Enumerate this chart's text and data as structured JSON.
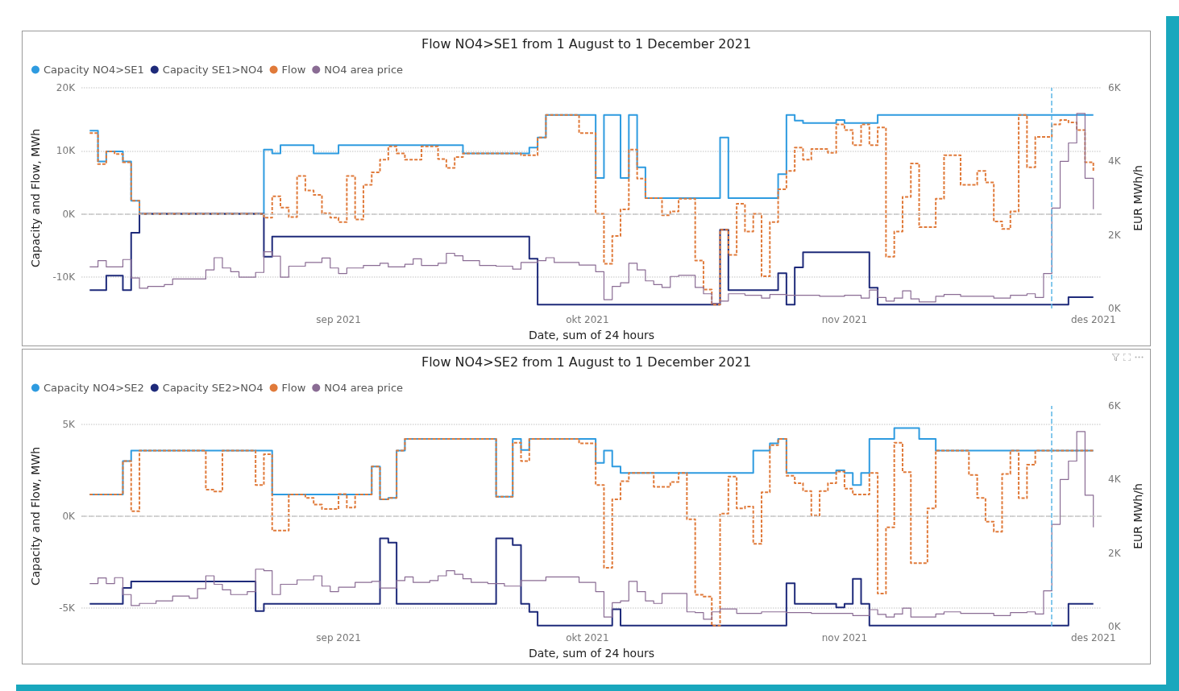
{
  "chart_data": [
    {
      "type": "step",
      "title": "Flow NO4>SE1 from 1 August to 1 December 2021",
      "xlabel": "Date, sum of 24 hours",
      "ylabel": "Capacity and Flow, MWh",
      "y2label": "EUR MWh/h",
      "legend": "top left",
      "grid": "y",
      "xlim": [
        "2021-08-01",
        "2021-12-02"
      ],
      "xticks": [
        {
          "value": "2021-09-01",
          "label": "sep 2021"
        },
        {
          "value": "2021-10-01",
          "label": "okt 2021"
        },
        {
          "value": "2021-11-01",
          "label": "nov 2021"
        },
        {
          "value": "2021-12-01",
          "label": "des 2021"
        }
      ],
      "ylim": [
        -15000,
        20000
      ],
      "yticks": [
        {
          "value": -10000,
          "label": "-10K"
        },
        {
          "value": 0,
          "label": "0K"
        },
        {
          "value": 10000,
          "label": "10K"
        },
        {
          "value": 20000,
          "label": "20K"
        }
      ],
      "y2lim": [
        0,
        6000
      ],
      "y2ticks": [
        {
          "value": 0,
          "label": "0K"
        },
        {
          "value": 2000,
          "label": "2K"
        },
        {
          "value": 4000,
          "label": "4K"
        },
        {
          "value": 6000,
          "label": "6K"
        }
      ],
      "ref_lines": [
        {
          "axis": "y",
          "value": 0,
          "color": "#c8c8c8",
          "line_style": "dashed"
        },
        {
          "axis": "x",
          "value": "2021-11-26",
          "color": "#5cb6e6",
          "line_style": "dashed"
        }
      ],
      "series": [
        {
          "name": "Capacity NO4>SE1",
          "color": "#2e9be0",
          "line_style": "solid",
          "x": [
            "2021-08-02",
            "2021-08-03",
            "2021-08-04",
            "2021-08-06",
            "2021-08-07",
            "2021-08-08",
            "2021-08-23",
            "2021-08-24",
            "2021-08-25",
            "2021-08-29",
            "2021-09-01",
            "2021-09-16",
            "2021-09-24",
            "2021-09-25",
            "2021-09-26",
            "2021-10-02",
            "2021-10-03",
            "2021-10-05",
            "2021-10-06",
            "2021-10-07",
            "2021-10-08",
            "2021-10-17",
            "2021-10-18",
            "2021-10-24",
            "2021-10-25",
            "2021-10-26",
            "2021-10-27",
            "2021-10-31",
            "2021-11-01",
            "2021-11-05",
            "2021-12-01"
          ],
          "values": [
            13200,
            8300,
            9900,
            8300,
            2100,
            0,
            10200,
            9600,
            10900,
            9600,
            10900,
            9600,
            10500,
            12100,
            15700,
            5700,
            15700,
            5700,
            15700,
            7400,
            2500,
            12100,
            2500,
            6300,
            15700,
            14800,
            14400,
            14900,
            14400,
            15700,
            15700
          ]
        },
        {
          "name": "Capacity SE1>NO4",
          "color": "#1e2a7a",
          "line_style": "solid",
          "x": [
            "2021-08-02",
            "2021-08-04",
            "2021-08-06",
            "2021-08-07",
            "2021-08-08",
            "2021-08-23",
            "2021-08-24",
            "2021-09-24",
            "2021-09-25",
            "2021-10-17",
            "2021-10-18",
            "2021-10-24",
            "2021-10-25",
            "2021-10-26",
            "2021-10-27",
            "2021-11-04",
            "2021-11-05",
            "2021-11-28",
            "2021-12-01"
          ],
          "values": [
            -12100,
            -9800,
            -12100,
            -3000,
            0,
            -6800,
            -3600,
            -7100,
            -14400,
            -2500,
            -12100,
            -9400,
            -14400,
            -8500,
            -6100,
            -11700,
            -14400,
            -13200,
            -13200
          ]
        },
        {
          "name": "Flow",
          "color": "#e07a3a",
          "line_style": "dashed",
          "x": [
            "2021-08-02",
            "2021-08-03",
            "2021-08-04",
            "2021-08-05",
            "2021-08-06",
            "2021-08-07",
            "2021-08-08",
            "2021-08-23",
            "2021-08-24",
            "2021-08-25",
            "2021-08-26",
            "2021-08-27",
            "2021-08-28",
            "2021-08-29",
            "2021-08-30",
            "2021-08-31",
            "2021-09-01",
            "2021-09-02",
            "2021-09-03",
            "2021-09-04",
            "2021-09-05",
            "2021-09-06",
            "2021-09-07",
            "2021-09-08",
            "2021-09-09",
            "2021-09-11",
            "2021-09-13",
            "2021-09-14",
            "2021-09-15",
            "2021-09-16",
            "2021-09-23",
            "2021-09-25",
            "2021-09-26",
            "2021-09-30",
            "2021-10-02",
            "2021-10-03",
            "2021-10-04",
            "2021-10-05",
            "2021-10-06",
            "2021-10-07",
            "2021-10-08",
            "2021-10-10",
            "2021-10-11",
            "2021-10-12",
            "2021-10-14",
            "2021-10-15",
            "2021-10-16",
            "2021-10-17",
            "2021-10-18",
            "2021-10-19",
            "2021-10-20",
            "2021-10-21",
            "2021-10-22",
            "2021-10-23",
            "2021-10-24",
            "2021-10-25",
            "2021-10-26",
            "2021-10-27",
            "2021-10-28",
            "2021-10-30",
            "2021-10-31",
            "2021-11-01",
            "2021-11-02",
            "2021-11-03",
            "2021-11-04",
            "2021-11-05",
            "2021-11-06",
            "2021-11-07",
            "2021-11-08",
            "2021-11-09",
            "2021-11-10",
            "2021-11-12",
            "2021-11-13",
            "2021-11-15",
            "2021-11-17",
            "2021-11-18",
            "2021-11-19",
            "2021-11-20",
            "2021-11-21",
            "2021-11-22",
            "2021-11-23",
            "2021-11-24",
            "2021-11-26",
            "2021-11-27",
            "2021-11-28",
            "2021-11-29",
            "2021-11-30",
            "2021-12-01"
          ],
          "values": [
            12800,
            7900,
            9900,
            9500,
            8200,
            2100,
            0,
            -600,
            2800,
            1000,
            -500,
            6000,
            3700,
            3000,
            100,
            -600,
            -1300,
            6000,
            -900,
            4600,
            6600,
            8600,
            10700,
            9600,
            8600,
            10700,
            8700,
            7300,
            9000,
            9600,
            9300,
            12100,
            15700,
            12800,
            0,
            -7900,
            -3500,
            700,
            10200,
            5600,
            2500,
            -200,
            400,
            2400,
            -7400,
            -12000,
            -14400,
            -2500,
            -6500,
            1600,
            -2800,
            0,
            -9900,
            -1300,
            3900,
            6800,
            10500,
            8600,
            10300,
            9700,
            14200,
            13300,
            10900,
            14200,
            10900,
            13700,
            -6800,
            -2800,
            2700,
            8000,
            -2100,
            2400,
            9300,
            4600,
            6800,
            5000,
            -1200,
            -2400,
            400,
            15700,
            7400,
            12200,
            14200,
            14900,
            14500,
            13300,
            8200,
            6600
          ]
        },
        {
          "name": "NO4 area price",
          "color": "#8a6c94",
          "line_style": "solid",
          "axis": "y2",
          "x": [
            "2021-08-02",
            "2021-08-03",
            "2021-08-04",
            "2021-08-06",
            "2021-08-07",
            "2021-08-08",
            "2021-08-09",
            "2021-08-11",
            "2021-08-12",
            "2021-08-16",
            "2021-08-17",
            "2021-08-18",
            "2021-08-19",
            "2021-08-20",
            "2021-08-22",
            "2021-08-23",
            "2021-08-24",
            "2021-08-25",
            "2021-08-26",
            "2021-08-28",
            "2021-08-30",
            "2021-08-31",
            "2021-09-01",
            "2021-09-02",
            "2021-09-04",
            "2021-09-06",
            "2021-09-07",
            "2021-09-09",
            "2021-09-10",
            "2021-09-11",
            "2021-09-13",
            "2021-09-14",
            "2021-09-15",
            "2021-09-16",
            "2021-09-18",
            "2021-09-20",
            "2021-09-22",
            "2021-09-23",
            "2021-09-25",
            "2021-09-26",
            "2021-09-27",
            "2021-09-30",
            "2021-10-02",
            "2021-10-03",
            "2021-10-04",
            "2021-10-05",
            "2021-10-06",
            "2021-10-07",
            "2021-10-08",
            "2021-10-09",
            "2021-10-10",
            "2021-10-11",
            "2021-10-12",
            "2021-10-14",
            "2021-10-15",
            "2021-10-16",
            "2021-10-17",
            "2021-10-18",
            "2021-10-20",
            "2021-10-22",
            "2021-10-23",
            "2021-10-25",
            "2021-10-29",
            "2021-11-01",
            "2021-11-03",
            "2021-11-04",
            "2021-11-05",
            "2021-11-06",
            "2021-11-07",
            "2021-11-08",
            "2021-11-09",
            "2021-11-10",
            "2021-11-12",
            "2021-11-13",
            "2021-11-15",
            "2021-11-19",
            "2021-11-21",
            "2021-11-23",
            "2021-11-24",
            "2021-11-25",
            "2021-11-26",
            "2021-11-27",
            "2021-11-28",
            "2021-11-29",
            "2021-11-30",
            "2021-12-01"
          ],
          "values": [
            1130,
            1300,
            1130,
            1330,
            830,
            550,
            600,
            650,
            800,
            1050,
            1380,
            1100,
            1000,
            850,
            980,
            1540,
            1420,
            850,
            1150,
            1250,
            1370,
            1100,
            950,
            1100,
            1170,
            1230,
            1130,
            1200,
            1350,
            1170,
            1230,
            1500,
            1430,
            1300,
            1170,
            1150,
            1070,
            1250,
            1300,
            1380,
            1250,
            1180,
            1000,
            240,
            600,
            700,
            1230,
            1050,
            750,
            650,
            570,
            870,
            900,
            570,
            400,
            140,
            200,
            400,
            360,
            280,
            380,
            360,
            330,
            360,
            280,
            500,
            300,
            200,
            280,
            480,
            260,
            180,
            330,
            380,
            330,
            280,
            360,
            400,
            300,
            950,
            2730,
            4000,
            4500,
            5300,
            3540,
            2700
          ]
        }
      ]
    },
    {
      "type": "step",
      "title": "Flow NO4>SE2 from 1 August to 1 December 2021",
      "xlabel": "Date, sum of 24 hours",
      "ylabel": "Capacity and Flow, MWh",
      "y2label": "EUR MWh/h",
      "legend": "top left",
      "grid": "y",
      "xlim": [
        "2021-08-01",
        "2021-12-02"
      ],
      "xticks": [
        {
          "value": "2021-09-01",
          "label": "sep 2021"
        },
        {
          "value": "2021-10-01",
          "label": "okt 2021"
        },
        {
          "value": "2021-11-01",
          "label": "nov 2021"
        },
        {
          "value": "2021-12-01",
          "label": "des 2021"
        }
      ],
      "ylim": [
        -6000,
        6000
      ],
      "yticks": [
        {
          "value": -5000,
          "label": "-5K"
        },
        {
          "value": 0,
          "label": "0K"
        },
        {
          "value": 5000,
          "label": "5K"
        }
      ],
      "y2lim": [
        0,
        6000
      ],
      "y2ticks": [
        {
          "value": 0,
          "label": "0K"
        },
        {
          "value": 2000,
          "label": "2K"
        },
        {
          "value": 4000,
          "label": "4K"
        },
        {
          "value": 6000,
          "label": "6K"
        }
      ],
      "ref_lines": [
        {
          "axis": "y",
          "value": 0,
          "color": "#c8c8c8",
          "line_style": "dashed"
        },
        {
          "axis": "x",
          "value": "2021-11-26",
          "color": "#5cb6e6",
          "line_style": "dashed"
        }
      ],
      "series": [
        {
          "name": "Capacity NO4>SE2",
          "color": "#2e9be0",
          "line_style": "solid",
          "x": [
            "2021-08-02",
            "2021-08-06",
            "2021-08-07",
            "2021-08-24",
            "2021-09-05",
            "2021-09-06",
            "2021-09-07",
            "2021-09-08",
            "2021-09-09",
            "2021-09-20",
            "2021-09-22",
            "2021-09-23",
            "2021-09-24",
            "2021-10-02",
            "2021-10-03",
            "2021-10-04",
            "2021-10-05",
            "2021-10-21",
            "2021-10-23",
            "2021-10-24",
            "2021-10-25",
            "2021-10-31",
            "2021-11-01",
            "2021-11-02",
            "2021-11-03",
            "2021-11-04",
            "2021-11-07",
            "2021-11-10",
            "2021-11-12",
            "2021-12-01"
          ],
          "values": [
            1180,
            3000,
            3570,
            1180,
            2700,
            920,
            1000,
            3570,
            4200,
            1060,
            4200,
            3600,
            4200,
            2900,
            3570,
            2700,
            2350,
            3570,
            3960,
            4200,
            2350,
            2500,
            2350,
            1700,
            2350,
            4200,
            4800,
            4200,
            3570,
            3570
          ]
        },
        {
          "name": "Capacity SE2>NO4",
          "color": "#1e2a7a",
          "line_style": "solid",
          "x": [
            "2021-08-02",
            "2021-08-06",
            "2021-08-07",
            "2021-08-22",
            "2021-08-23",
            "2021-09-06",
            "2021-09-07",
            "2021-09-08",
            "2021-09-20",
            "2021-09-22",
            "2021-09-23",
            "2021-09-24",
            "2021-09-25",
            "2021-10-04",
            "2021-10-05",
            "2021-10-25",
            "2021-10-26",
            "2021-10-31",
            "2021-11-01",
            "2021-11-02",
            "2021-11-03",
            "2021-11-04",
            "2021-11-28",
            "2021-12-01"
          ],
          "values": [
            -4760,
            -3900,
            -3550,
            -5160,
            -4760,
            -1200,
            -1430,
            -4760,
            -1200,
            -1570,
            -4760,
            -5200,
            -5950,
            -5060,
            -5950,
            -3650,
            -4760,
            -4960,
            -4760,
            -3400,
            -4760,
            -5950,
            -4760,
            -4760
          ]
        },
        {
          "name": "Flow",
          "color": "#e07a3a",
          "line_style": "dashed",
          "x": [
            "2021-08-02",
            "2021-08-06",
            "2021-08-07",
            "2021-08-08",
            "2021-08-16",
            "2021-08-17",
            "2021-08-18",
            "2021-08-22",
            "2021-08-23",
            "2021-08-24",
            "2021-08-26",
            "2021-08-28",
            "2021-08-29",
            "2021-08-30",
            "2021-09-01",
            "2021-09-02",
            "2021-09-03",
            "2021-09-05",
            "2021-09-06",
            "2021-09-07",
            "2021-09-08",
            "2021-09-09",
            "2021-09-20",
            "2021-09-22",
            "2021-09-23",
            "2021-09-24",
            "2021-09-30",
            "2021-10-02",
            "2021-10-03",
            "2021-10-04",
            "2021-10-05",
            "2021-10-06",
            "2021-10-09",
            "2021-10-11",
            "2021-10-12",
            "2021-10-13",
            "2021-10-14",
            "2021-10-15",
            "2021-10-16",
            "2021-10-17",
            "2021-10-18",
            "2021-10-19",
            "2021-10-20",
            "2021-10-21",
            "2021-10-22",
            "2021-10-23",
            "2021-10-24",
            "2021-10-25",
            "2021-10-26",
            "2021-10-27",
            "2021-10-28",
            "2021-10-29",
            "2021-10-30",
            "2021-10-31",
            "2021-11-01",
            "2021-11-02",
            "2021-11-04",
            "2021-11-05",
            "2021-11-06",
            "2021-11-07",
            "2021-11-08",
            "2021-11-09",
            "2021-11-11",
            "2021-11-12",
            "2021-11-16",
            "2021-11-17",
            "2021-11-18",
            "2021-11-19",
            "2021-11-20",
            "2021-11-21",
            "2021-11-22",
            "2021-11-23",
            "2021-11-24",
            "2021-12-01"
          ],
          "values": [
            1180,
            3000,
            270,
            3570,
            1450,
            1350,
            3570,
            1700,
            3370,
            -780,
            1180,
            1000,
            630,
            390,
            1200,
            470,
            1180,
            2700,
            920,
            1000,
            3570,
            4200,
            1060,
            4000,
            3000,
            4200,
            3960,
            1700,
            -2800,
            920,
            1900,
            2350,
            1600,
            1860,
            2350,
            -160,
            -4270,
            -4370,
            -5950,
            140,
            2160,
            430,
            530,
            -1500,
            1300,
            3860,
            4200,
            2200,
            1800,
            1370,
            40,
            1370,
            1800,
            2430,
            1500,
            1180,
            2350,
            -4200,
            -600,
            4000,
            2400,
            -2550,
            430,
            3570,
            2240,
            1000,
            -300,
            -840,
            2300,
            3570,
            980,
            2800,
            3570,
            3570
          ]
        },
        {
          "name": "NO4 area price",
          "color": "#8a6c94",
          "line_style": "solid",
          "axis": "y2",
          "x": [
            "2021-08-02",
            "2021-08-03",
            "2021-08-04",
            "2021-08-05",
            "2021-08-06",
            "2021-08-07",
            "2021-08-08",
            "2021-08-10",
            "2021-08-12",
            "2021-08-14",
            "2021-08-15",
            "2021-08-16",
            "2021-08-17",
            "2021-08-18",
            "2021-08-19",
            "2021-08-21",
            "2021-08-22",
            "2021-08-23",
            "2021-08-24",
            "2021-08-25",
            "2021-08-27",
            "2021-08-29",
            "2021-08-30",
            "2021-08-31",
            "2021-09-01",
            "2021-09-03",
            "2021-09-05",
            "2021-09-06",
            "2021-09-08",
            "2021-09-09",
            "2021-09-10",
            "2021-09-12",
            "2021-09-13",
            "2021-09-14",
            "2021-09-15",
            "2021-09-16",
            "2021-09-17",
            "2021-09-19",
            "2021-09-21",
            "2021-09-23",
            "2021-09-26",
            "2021-09-30",
            "2021-10-02",
            "2021-10-03",
            "2021-10-04",
            "2021-10-05",
            "2021-10-06",
            "2021-10-07",
            "2021-10-08",
            "2021-10-09",
            "2021-10-10",
            "2021-10-13",
            "2021-10-14",
            "2021-10-15",
            "2021-10-16",
            "2021-10-17",
            "2021-10-19",
            "2021-10-22",
            "2021-10-25",
            "2021-10-28",
            "2021-11-02",
            "2021-11-04",
            "2021-11-05",
            "2021-11-06",
            "2021-11-07",
            "2021-11-08",
            "2021-11-09",
            "2021-11-12",
            "2021-11-13",
            "2021-11-15",
            "2021-11-19",
            "2021-11-21",
            "2021-11-23",
            "2021-11-24",
            "2021-11-25",
            "2021-11-26",
            "2021-11-27",
            "2021-11-28",
            "2021-11-29",
            "2021-11-30",
            "2021-12-01"
          ],
          "values": [
            1170,
            1320,
            1170,
            1330,
            870,
            570,
            630,
            700,
            830,
            770,
            1030,
            1380,
            1150,
            1000,
            870,
            950,
            1560,
            1520,
            870,
            1150,
            1270,
            1380,
            1100,
            950,
            1070,
            1200,
            1230,
            1050,
            1250,
            1350,
            1200,
            1250,
            1380,
            1520,
            1420,
            1300,
            1200,
            1170,
            1100,
            1250,
            1350,
            1200,
            950,
            260,
            650,
            700,
            1230,
            950,
            700,
            630,
            900,
            400,
            380,
            200,
            400,
            480,
            360,
            400,
            380,
            360,
            300,
            460,
            330,
            260,
            340,
            500,
            260,
            340,
            400,
            360,
            300,
            380,
            400,
            340,
            970,
            2780,
            4000,
            4500,
            5300,
            3570,
            2700
          ]
        }
      ]
    }
  ]
}
